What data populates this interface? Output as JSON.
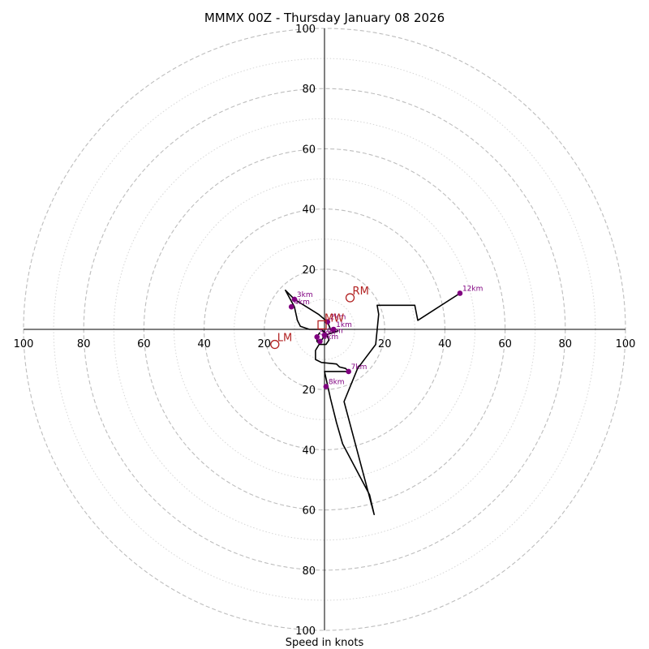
{
  "chart_data": {
    "type": "hodograph",
    "title": "MMMX 00Z - Thursday January 08 2026",
    "xlabel": "Speed in knots",
    "ylabel": "",
    "xlim": [
      -100,
      100
    ],
    "ylim": [
      -100,
      100
    ],
    "major_rings": [
      20,
      40,
      60,
      80,
      100
    ],
    "minor_rings": [
      10,
      30,
      50,
      70,
      90
    ],
    "tick_labels": {
      "left": [
        "100",
        "80",
        "60",
        "40",
        "20"
      ],
      "right": [
        "20",
        "40",
        "60",
        "80",
        "100"
      ],
      "top": [
        "20",
        "40",
        "60",
        "80",
        "100"
      ],
      "bottom": [
        "20",
        "40",
        "60",
        "80",
        "100"
      ]
    },
    "hodograph_uv": [
      [
        -1.5,
        -1.0
      ],
      [
        -2.5,
        -2.5
      ],
      [
        -2.5,
        -4.0
      ],
      [
        -1.5,
        -5.0
      ],
      [
        0.5,
        -5.0
      ],
      [
        1.5,
        -3.5
      ],
      [
        0.5,
        -1.5
      ],
      [
        -1.0,
        0.0
      ],
      [
        -5.0,
        0.0
      ],
      [
        -8.0,
        1.0
      ],
      [
        -9.0,
        3.0
      ],
      [
        -10.0,
        7.5
      ],
      [
        -13.0,
        13.0
      ],
      [
        -11.0,
        11.0
      ],
      [
        -10.0,
        10.0
      ],
      [
        -2.0,
        5.0
      ],
      [
        1.0,
        2.5
      ],
      [
        2.0,
        0.0
      ],
      [
        3.0,
        -1.0
      ],
      [
        4.5,
        -0.5
      ],
      [
        0.0,
        -2.0
      ],
      [
        -3.0,
        -7.0
      ],
      [
        -3.0,
        -10.0
      ],
      [
        -1.0,
        -11.0
      ],
      [
        4.0,
        -11.5
      ],
      [
        5.0,
        -12.5
      ],
      [
        7.0,
        -13.0
      ],
      [
        8.0,
        -14.0
      ],
      [
        0.0,
        -14.0
      ],
      [
        2.0,
        -23.0
      ],
      [
        4.0,
        -31.0
      ],
      [
        6.0,
        -38.0
      ],
      [
        15.0,
        -55.0
      ],
      [
        16.5,
        -61.5
      ],
      [
        14.5,
        -54.0
      ],
      [
        6.5,
        -24.0
      ],
      [
        11.0,
        -13.0
      ],
      [
        17.0,
        -5.0
      ],
      [
        18.0,
        5.0
      ],
      [
        17.5,
        8.0
      ],
      [
        30.0,
        8.0
      ],
      [
        31.0,
        3.0
      ],
      [
        45.0,
        12.0
      ]
    ],
    "height_markers": [
      {
        "label": "0km",
        "u": 0.0,
        "v": -2.0
      },
      {
        "label": "1km",
        "u": 3.0,
        "v": 0.0
      },
      {
        "label": "2km",
        "u": 1.0,
        "v": 2.5
      },
      {
        "label": "3km",
        "u": -10.0,
        "v": 10.0
      },
      {
        "label": "4km",
        "u": -11.0,
        "v": 7.5
      },
      {
        "label": "5km",
        "u": -2.5,
        "v": -2.5
      },
      {
        "label": "6km",
        "u": -1.5,
        "v": -4.0
      },
      {
        "label": "7km",
        "u": 8.0,
        "v": -14.0
      },
      {
        "label": "8km",
        "u": 0.5,
        "v": -19.0
      },
      {
        "label": "12km",
        "u": 45.0,
        "v": 12.0
      }
    ],
    "storm_motion": [
      {
        "label": "RM",
        "u": 8.5,
        "v": 10.5
      },
      {
        "label": "MW",
        "u": -0.8,
        "v": 1.5
      },
      {
        "label": "LM",
        "u": -16.5,
        "v": -5.0
      }
    ]
  }
}
